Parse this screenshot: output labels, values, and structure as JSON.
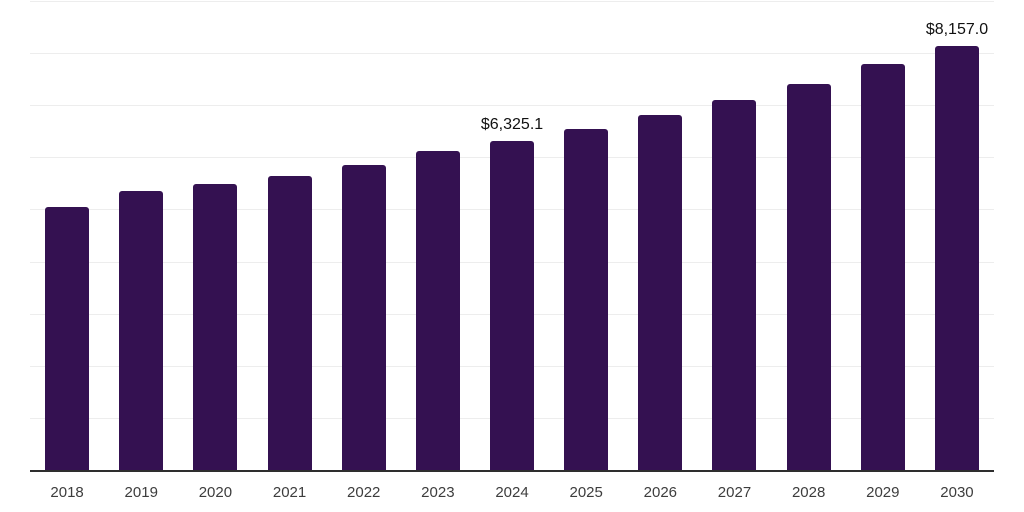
{
  "chart_data": {
    "type": "bar",
    "title": "",
    "xlabel": "",
    "ylabel": "",
    "categories": [
      "2018",
      "2019",
      "2020",
      "2021",
      "2022",
      "2023",
      "2024",
      "2025",
      "2026",
      "2027",
      "2028",
      "2029",
      "2030"
    ],
    "values": [
      5060,
      5365,
      5510,
      5655,
      5865,
      6135,
      6325.1,
      6555,
      6835,
      7115,
      7430,
      7805,
      8157.0
    ],
    "value_labels": {
      "2024": "$6,325.1",
      "2030": "$8,157.0"
    },
    "ylim": [
      0,
      9000
    ],
    "gridline_step": 1000,
    "grid": "horizontal-only",
    "legend": "none",
    "y_axis_tick_labels": "none",
    "colors": {
      "bar": "#341151",
      "gridline": "#ededed",
      "axis_line": "#2e2e2e",
      "tick_label": "#3d3d3d",
      "data_label": "#111111"
    }
  }
}
